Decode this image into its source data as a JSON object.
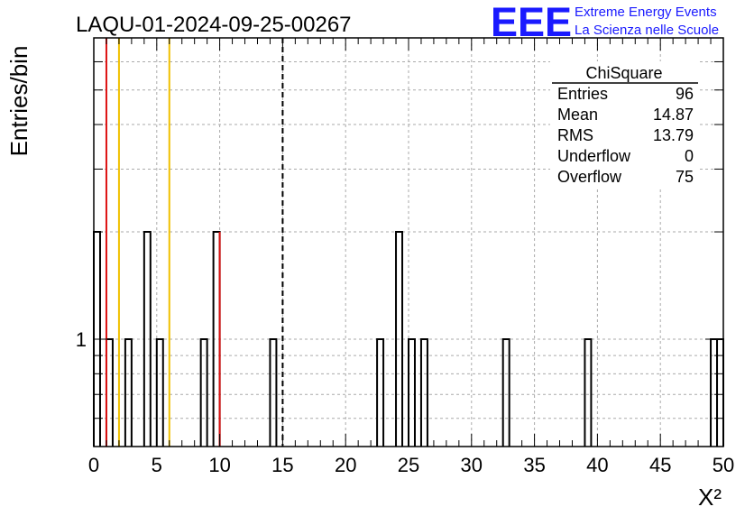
{
  "header": {
    "run_title": "LAQU-01-2024-09-25-00267",
    "logo_text": "EEE",
    "logo_line1": "Extreme Energy Events",
    "logo_line2": "La Scienza nelle Scuole"
  },
  "stats_box": {
    "title": "ChiSquare",
    "rows": [
      {
        "label": "Entries",
        "value": "96"
      },
      {
        "label": "Mean",
        "value": "14.87"
      },
      {
        "label": "RMS",
        "value": "13.79"
      },
      {
        "label": "Underflow",
        "value": "0"
      },
      {
        "label": "Overflow",
        "value": "75"
      }
    ]
  },
  "chart_data": {
    "type": "bar",
    "title": "LAQU-01-2024-09-25-00267",
    "xlabel": "X²",
    "ylabel": "Entries/bin",
    "xlim": [
      0,
      50
    ],
    "ylim": [
      0.5,
      7
    ],
    "y_scale": "log",
    "bin_width": 0.5,
    "x_ticks": [
      "0",
      "5",
      "10",
      "15",
      "20",
      "25",
      "30",
      "35",
      "40",
      "45",
      "50"
    ],
    "y_tick_labels": [
      "1"
    ],
    "grid": true,
    "colors": {
      "histogram": "#000000",
      "red_line": "#dd1111",
      "yellow_line": "#f0c000",
      "logo_blue": "#1a1aff"
    },
    "bins": [
      {
        "x": 0.0,
        "count": 2
      },
      {
        "x": 1.0,
        "count": 1
      },
      {
        "x": 2.5,
        "count": 1
      },
      {
        "x": 4.0,
        "count": 2
      },
      {
        "x": 5.0,
        "count": 1
      },
      {
        "x": 8.5,
        "count": 1
      },
      {
        "x": 9.5,
        "count": 2
      },
      {
        "x": 14.0,
        "count": 1
      },
      {
        "x": 22.5,
        "count": 1
      },
      {
        "x": 24.0,
        "count": 2
      },
      {
        "x": 25.0,
        "count": 1
      },
      {
        "x": 26.0,
        "count": 1
      },
      {
        "x": 32.5,
        "count": 1
      },
      {
        "x": 39.0,
        "count": 1
      },
      {
        "x": 49.0,
        "count": 1
      },
      {
        "x": 49.5,
        "count": 1
      }
    ],
    "reference_lines": [
      {
        "x": 1.0,
        "color": "red",
        "style": "solid"
      },
      {
        "x": 2.0,
        "color": "yellow",
        "style": "solid"
      },
      {
        "x": 6.0,
        "color": "yellow",
        "style": "solid"
      },
      {
        "x": 10.0,
        "color": "red",
        "style": "solid"
      },
      {
        "x": 15.0,
        "color": "black",
        "style": "dashed"
      }
    ]
  }
}
